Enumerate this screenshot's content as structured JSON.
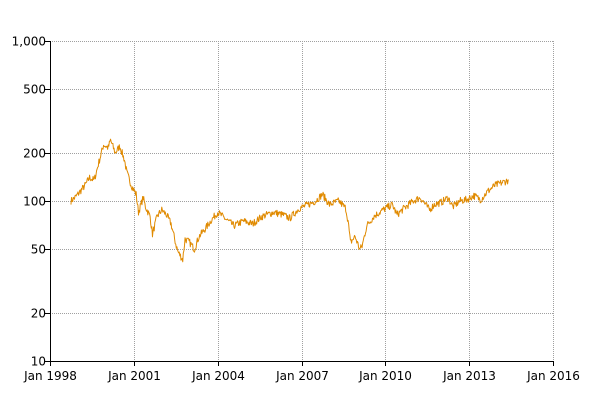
{
  "chart_data": {
    "type": "line",
    "title": "",
    "xlabel": "",
    "ylabel": "",
    "y_scale": "log",
    "ylim": [
      10,
      1000
    ],
    "xlim": [
      "1998-01",
      "2016-01"
    ],
    "grid": true,
    "legend": "none",
    "x_ticks": [
      {
        "date": "1998-01",
        "label": "Jan 1998"
      },
      {
        "date": "2001-01",
        "label": "Jan 2001"
      },
      {
        "date": "2004-01",
        "label": "Jan 2004"
      },
      {
        "date": "2007-01",
        "label": "Jan 2007"
      },
      {
        "date": "2010-01",
        "label": "Jan 2010"
      },
      {
        "date": "2013-01",
        "label": "Jan 2013"
      },
      {
        "date": "2016-01",
        "label": "Jan 2016"
      }
    ],
    "y_ticks": [
      {
        "value": 10,
        "label": "10"
      },
      {
        "value": 20,
        "label": "20"
      },
      {
        "value": 50,
        "label": "50"
      },
      {
        "value": 100,
        "label": "100"
      },
      {
        "value": 200,
        "label": "200"
      },
      {
        "value": 500,
        "label": "500"
      },
      {
        "value": 1000,
        "label": "1,000"
      }
    ],
    "series": [
      {
        "color": "#e08a00",
        "points": [
          [
            "1998-10",
            100
          ],
          [
            "1998-12",
            106
          ],
          [
            "1999-02",
            115
          ],
          [
            "1999-04",
            125
          ],
          [
            "1999-06",
            140
          ],
          [
            "1999-08",
            135
          ],
          [
            "1999-10",
            175
          ],
          [
            "1999-12",
            225
          ],
          [
            "2000-02",
            215
          ],
          [
            "2000-03",
            240
          ],
          [
            "2000-05",
            200
          ],
          [
            "2000-07",
            220
          ],
          [
            "2000-09",
            180
          ],
          [
            "2000-10",
            150
          ],
          [
            "2000-12",
            125
          ],
          [
            "2001-02",
            110
          ],
          [
            "2001-03",
            85
          ],
          [
            "2001-05",
            105
          ],
          [
            "2001-06",
            92
          ],
          [
            "2001-08",
            80
          ],
          [
            "2001-09",
            62
          ],
          [
            "2001-11",
            80
          ],
          [
            "2002-01",
            88
          ],
          [
            "2002-03",
            82
          ],
          [
            "2002-05",
            72
          ],
          [
            "2002-07",
            54
          ],
          [
            "2002-08",
            48
          ],
          [
            "2002-10",
            43
          ],
          [
            "2002-11",
            58
          ],
          [
            "2003-01",
            55
          ],
          [
            "2003-03",
            50
          ],
          [
            "2003-05",
            60
          ],
          [
            "2003-08",
            68
          ],
          [
            "2003-10",
            75
          ],
          [
            "2004-01",
            85
          ],
          [
            "2004-04",
            78
          ],
          [
            "2004-08",
            70
          ],
          [
            "2004-12",
            75
          ],
          [
            "2005-04",
            72
          ],
          [
            "2005-08",
            80
          ],
          [
            "2006-01",
            85
          ],
          [
            "2006-05",
            82
          ],
          [
            "2006-08",
            78
          ],
          [
            "2006-12",
            90
          ],
          [
            "2007-04",
            95
          ],
          [
            "2007-07",
            100
          ],
          [
            "2007-10",
            110
          ],
          [
            "2008-01",
            95
          ],
          [
            "2008-05",
            100
          ],
          [
            "2008-08",
            90
          ],
          [
            "2008-09",
            75
          ],
          [
            "2008-10",
            55
          ],
          [
            "2008-12",
            60
          ],
          [
            "2009-02",
            50
          ],
          [
            "2009-03",
            52
          ],
          [
            "2009-05",
            70
          ],
          [
            "2009-08",
            80
          ],
          [
            "2009-12",
            88
          ],
          [
            "2010-04",
            95
          ],
          [
            "2010-06",
            82
          ],
          [
            "2010-09",
            90
          ],
          [
            "2011-01",
            100
          ],
          [
            "2011-04",
            105
          ],
          [
            "2011-08",
            88
          ],
          [
            "2011-10",
            95
          ],
          [
            "2012-01",
            98
          ],
          [
            "2012-04",
            105
          ],
          [
            "2012-06",
            92
          ],
          [
            "2012-09",
            100
          ],
          [
            "2012-12",
            102
          ],
          [
            "2013-03",
            108
          ],
          [
            "2013-06",
            102
          ],
          [
            "2013-09",
            115
          ],
          [
            "2013-12",
            125
          ],
          [
            "2014-03",
            130
          ],
          [
            "2014-06",
            135
          ]
        ]
      }
    ]
  }
}
